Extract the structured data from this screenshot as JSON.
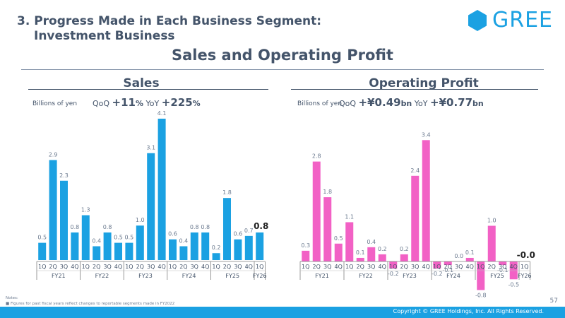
{
  "header": {
    "heading_line1": "3. Progress Made in Each Business Segment:",
    "heading_line2": "Investment Business",
    "logo_text": "GREE",
    "main_title": "Sales and Operating Profit"
  },
  "sales": {
    "title": "Sales",
    "unit": "Billions of yen",
    "qoq_label": "QoQ",
    "qoq_value": "+11",
    "qoq_suffix": "%",
    "yoy_label": "YoY",
    "yoy_value": "+225",
    "yoy_suffix": "%"
  },
  "profit": {
    "title": "Operating Profit",
    "unit": "Billions of yen",
    "qoq_label": "QoQ",
    "qoq_value": "+¥0.49",
    "qoq_suffix": "bn",
    "yoy_label": "YoY",
    "yoy_value": "+¥0.77",
    "yoy_suffix": "bn"
  },
  "chart_data": [
    {
      "type": "bar",
      "title": "Sales",
      "ylabel": "Billions of yen",
      "color": "#1ba1e2",
      "quarters": [
        "1Q",
        "2Q",
        "3Q",
        "4Q",
        "1Q",
        "2Q",
        "3Q",
        "4Q",
        "1Q",
        "2Q",
        "3Q",
        "4Q",
        "1Q",
        "2Q",
        "3Q",
        "4Q",
        "1Q",
        "2Q",
        "3Q",
        "4Q",
        "1Q"
      ],
      "years": [
        {
          "label": "FY21",
          "count": 4
        },
        {
          "label": "FY22",
          "count": 4
        },
        {
          "label": "FY23",
          "count": 4
        },
        {
          "label": "FY24",
          "count": 4
        },
        {
          "label": "FY25",
          "count": 4
        },
        {
          "label": "FY26",
          "count": 1
        }
      ],
      "values": [
        0.5,
        2.9,
        2.3,
        0.8,
        1.3,
        0.4,
        0.8,
        0.5,
        0.5,
        1.0,
        3.1,
        4.1,
        0.6,
        0.4,
        0.8,
        0.8,
        0.2,
        1.8,
        0.6,
        0.7,
        0.8
      ],
      "labels": [
        "0.5",
        "2.9",
        "2.3",
        "0.8",
        "1.3",
        "0.4",
        "0.8",
        "0.5",
        "0.5",
        "1.0",
        "3.1",
        "4.1",
        "0.6",
        "0.4",
        "0.8",
        "0.8",
        "0.2",
        "1.8",
        "0.6",
        "0.7",
        "0.8"
      ]
    },
    {
      "type": "bar",
      "title": "Operating Profit",
      "ylabel": "Billions of yen",
      "color": "#f261c5",
      "quarters": [
        "1Q",
        "2Q",
        "3Q",
        "4Q",
        "1Q",
        "2Q",
        "3Q",
        "4Q",
        "1Q",
        "2Q",
        "3Q",
        "4Q",
        "1Q",
        "2Q",
        "3Q",
        "4Q",
        "1Q",
        "2Q",
        "3Q",
        "4Q",
        "1Q"
      ],
      "years": [
        {
          "label": "FY21",
          "count": 4
        },
        {
          "label": "FY22",
          "count": 4
        },
        {
          "label": "FY23",
          "count": 4
        },
        {
          "label": "FY24",
          "count": 4
        },
        {
          "label": "FY25",
          "count": 4
        },
        {
          "label": "FY26",
          "count": 1
        }
      ],
      "values": [
        0.3,
        2.8,
        1.8,
        0.5,
        1.1,
        0.1,
        0.4,
        0.2,
        -0.2,
        0.2,
        2.4,
        3.4,
        -0.2,
        -0.1,
        0.0,
        0.1,
        -0.8,
        1.0,
        -0.1,
        -0.5,
        -0.0
      ],
      "labels": [
        "0.3",
        "2.8",
        "1.8",
        "0.5",
        "1.1",
        "0.1",
        "0.4",
        "0.2",
        "-0.2",
        "0.2",
        "2.4",
        "3.4",
        "-0.2",
        "-0.1",
        "0.0",
        "0.1",
        "-0.8",
        "1.0",
        "-0.1",
        "-0.5",
        "-0.0"
      ]
    }
  ],
  "footer": {
    "notes_title": "Notes:",
    "note1": "Figures for past fiscal years reflect changes to reportable segments made in FY2022",
    "page_number": "57",
    "copyright": "Copyright © GREE Holdings, Inc. All Rights Reserved."
  }
}
